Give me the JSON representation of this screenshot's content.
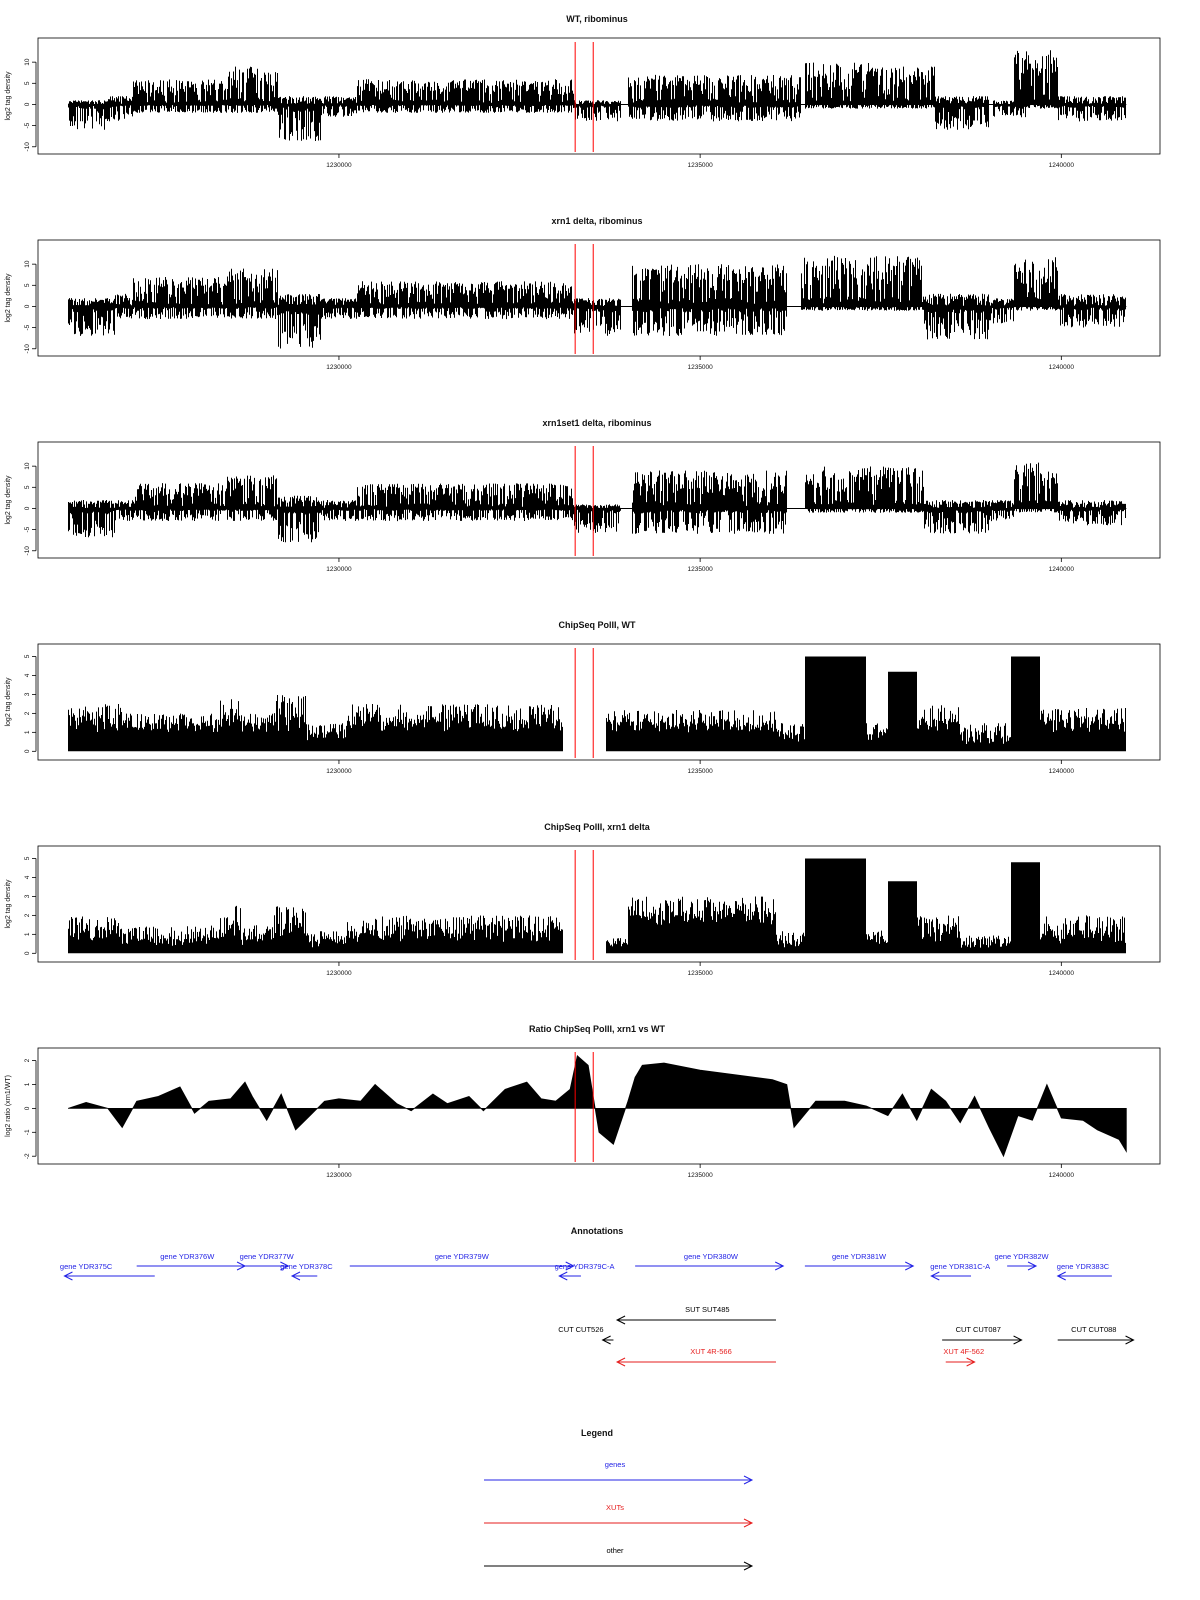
{
  "chart_data": [
    {
      "type": "bar",
      "title": "WT, ribominus",
      "ylabel": "log2 tag density",
      "ylim": [
        -11,
        15
      ],
      "yticks": [
        "-10",
        "-5",
        "0",
        "5",
        "10"
      ],
      "xlim": [
        1226000,
        1241200
      ],
      "xticks": [
        "1230000",
        "1235000",
        "1240000"
      ],
      "markers": [
        1233270,
        1233520
      ],
      "regions": [
        {
          "x0": 1226250,
          "x1": 1226800,
          "top": 1,
          "bot": -6
        },
        {
          "x0": 1226800,
          "x1": 1227150,
          "top": 2,
          "bot": -4
        },
        {
          "x0": 1227150,
          "x1": 1228450,
          "top": 6,
          "bot": -2
        },
        {
          "x0": 1228450,
          "x1": 1229150,
          "top": 9,
          "bot": -2
        },
        {
          "x0": 1229150,
          "x1": 1229750,
          "top": 2,
          "bot": -9
        },
        {
          "x0": 1229750,
          "x1": 1230250,
          "top": 2,
          "bot": -3
        },
        {
          "x0": 1230250,
          "x1": 1233250,
          "top": 6,
          "bot": -2
        },
        {
          "x0": 1233250,
          "x1": 1233900,
          "top": 1,
          "bot": -4
        },
        {
          "x0": 1234000,
          "x1": 1236400,
          "top": 7,
          "bot": -4
        },
        {
          "x0": 1236450,
          "x1": 1237500,
          "top": 10,
          "bot": -1
        },
        {
          "x0": 1237500,
          "x1": 1238250,
          "top": 9,
          "bot": -1
        },
        {
          "x0": 1238250,
          "x1": 1239000,
          "top": 2,
          "bot": -6
        },
        {
          "x0": 1239050,
          "x1": 1239550,
          "top": 1,
          "bot": -3
        },
        {
          "x0": 1239350,
          "x1": 1239950,
          "top": 13,
          "bot": -1
        },
        {
          "x0": 1239950,
          "x1": 1240900,
          "top": 2,
          "bot": -4
        }
      ]
    },
    {
      "type": "bar",
      "title": "xrn1 delta, ribominus",
      "ylabel": "log2 tag density",
      "ylim": [
        -11,
        15
      ],
      "yticks": [
        "-10",
        "-5",
        "0",
        "5",
        "10"
      ],
      "xlim": [
        1226000,
        1241200
      ],
      "xticks": [
        "1230000",
        "1235000",
        "1240000"
      ],
      "markers": [
        1233270,
        1233520
      ],
      "regions": [
        {
          "x0": 1226250,
          "x1": 1226900,
          "top": 2,
          "bot": -7
        },
        {
          "x0": 1226900,
          "x1": 1227150,
          "top": 3,
          "bot": -3
        },
        {
          "x0": 1227150,
          "x1": 1228450,
          "top": 7,
          "bot": -3
        },
        {
          "x0": 1228450,
          "x1": 1229150,
          "top": 9,
          "bot": -3
        },
        {
          "x0": 1229150,
          "x1": 1229750,
          "top": 3,
          "bot": -10
        },
        {
          "x0": 1229750,
          "x1": 1230250,
          "top": 2,
          "bot": -3
        },
        {
          "x0": 1230250,
          "x1": 1233250,
          "top": 6,
          "bot": -3
        },
        {
          "x0": 1233250,
          "x1": 1233900,
          "top": 2,
          "bot": -7
        },
        {
          "x0": 1234050,
          "x1": 1236200,
          "top": 10,
          "bot": -7
        },
        {
          "x0": 1236400,
          "x1": 1238100,
          "top": 12,
          "bot": -1
        },
        {
          "x0": 1238100,
          "x1": 1239000,
          "top": 3,
          "bot": -8
        },
        {
          "x0": 1239000,
          "x1": 1239350,
          "top": 2,
          "bot": -4
        },
        {
          "x0": 1239350,
          "x1": 1239950,
          "top": 12,
          "bot": -1
        },
        {
          "x0": 1239950,
          "x1": 1240900,
          "top": 3,
          "bot": -5
        }
      ]
    },
    {
      "type": "bar",
      "title": "xrn1set1 delta, ribominus",
      "ylabel": "log2 tag density",
      "ylim": [
        -11,
        15
      ],
      "yticks": [
        "-10",
        "-5",
        "0",
        "5",
        "10"
      ],
      "xlim": [
        1226000,
        1241200
      ],
      "xticks": [
        "1230000",
        "1235000",
        "1240000"
      ],
      "markers": [
        1233270,
        1233520
      ],
      "regions": [
        {
          "x0": 1226250,
          "x1": 1226900,
          "top": 2,
          "bot": -7
        },
        {
          "x0": 1226900,
          "x1": 1227150,
          "top": 2,
          "bot": -3
        },
        {
          "x0": 1227150,
          "x1": 1228450,
          "top": 6,
          "bot": -3
        },
        {
          "x0": 1228450,
          "x1": 1229150,
          "top": 8,
          "bot": -3
        },
        {
          "x0": 1229150,
          "x1": 1229750,
          "top": 3,
          "bot": -8
        },
        {
          "x0": 1229750,
          "x1": 1230250,
          "top": 2,
          "bot": -3
        },
        {
          "x0": 1230250,
          "x1": 1233250,
          "top": 6,
          "bot": -3
        },
        {
          "x0": 1233250,
          "x1": 1233900,
          "top": 1,
          "bot": -6
        },
        {
          "x0": 1234050,
          "x1": 1236200,
          "top": 9,
          "bot": -6
        },
        {
          "x0": 1236450,
          "x1": 1238100,
          "top": 10,
          "bot": -1
        },
        {
          "x0": 1238100,
          "x1": 1239000,
          "top": 2,
          "bot": -6
        },
        {
          "x0": 1239000,
          "x1": 1239350,
          "top": 2,
          "bot": -3
        },
        {
          "x0": 1239350,
          "x1": 1239950,
          "top": 11,
          "bot": -1
        },
        {
          "x0": 1239950,
          "x1": 1240900,
          "top": 2,
          "bot": -4
        }
      ]
    },
    {
      "type": "bar",
      "title": "ChipSeq PolII, WT",
      "ylabel": "log2 tag density",
      "ylim": [
        -0.3,
        5.5
      ],
      "yticks": [
        "0",
        "1",
        "2",
        "3",
        "4",
        "5"
      ],
      "xlim": [
        1226000,
        1241200
      ],
      "xticks": [
        "1230000",
        "1235000",
        "1240000"
      ],
      "markers": [
        1233270,
        1233520
      ],
      "regions": [
        {
          "x0": 1226250,
          "x1": 1227000,
          "top": 2.5,
          "base": 1
        },
        {
          "x0": 1227000,
          "x1": 1228350,
          "top": 2,
          "base": 1
        },
        {
          "x0": 1228350,
          "x1": 1228650,
          "top": 2.8,
          "base": 1
        },
        {
          "x0": 1228650,
          "x1": 1229100,
          "top": 2,
          "base": 1
        },
        {
          "x0": 1229100,
          "x1": 1229550,
          "top": 3,
          "base": 1
        },
        {
          "x0": 1229550,
          "x1": 1230100,
          "top": 1.5,
          "base": 0.5
        },
        {
          "x0": 1230100,
          "x1": 1231000,
          "top": 2.5,
          "base": 1
        },
        {
          "x0": 1231000,
          "x1": 1233100,
          "top": 2.5,
          "base": 1
        },
        {
          "x0": 1233700,
          "x1": 1236050,
          "top": 2.2,
          "base": 1
        },
        {
          "x0": 1236050,
          "x1": 1236450,
          "top": 1.5,
          "base": 0.5
        },
        {
          "x0": 1236450,
          "x1": 1237300,
          "top": 5,
          "base": 5
        },
        {
          "x0": 1237300,
          "x1": 1237600,
          "top": 1.5,
          "base": 0.5
        },
        {
          "x0": 1237600,
          "x1": 1238000,
          "top": 4.2,
          "base": 4.2
        },
        {
          "x0": 1238000,
          "x1": 1238600,
          "top": 2.5,
          "base": 1
        },
        {
          "x0": 1238600,
          "x1": 1239300,
          "top": 1.5,
          "base": 0.3
        },
        {
          "x0": 1239300,
          "x1": 1239700,
          "top": 5,
          "base": 5
        },
        {
          "x0": 1239700,
          "x1": 1240900,
          "top": 2.3,
          "base": 1
        }
      ]
    },
    {
      "type": "bar",
      "title": "ChipSeq PolII, xrn1 delta",
      "ylabel": "log2 tag density",
      "ylim": [
        -0.3,
        5.5
      ],
      "yticks": [
        "0",
        "1",
        "2",
        "3",
        "4",
        "5"
      ],
      "xlim": [
        1226000,
        1241200
      ],
      "xticks": [
        "1230000",
        "1235000",
        "1240000"
      ],
      "markers": [
        1233270,
        1233520
      ],
      "regions": [
        {
          "x0": 1226250,
          "x1": 1227000,
          "top": 2,
          "base": 0.6
        },
        {
          "x0": 1227000,
          "x1": 1228350,
          "top": 1.5,
          "base": 0.4
        },
        {
          "x0": 1228350,
          "x1": 1228650,
          "top": 2.5,
          "base": 0.8
        },
        {
          "x0": 1228650,
          "x1": 1229100,
          "top": 1.5,
          "base": 0.4
        },
        {
          "x0": 1229100,
          "x1": 1229550,
          "top": 2.5,
          "base": 0.8
        },
        {
          "x0": 1229550,
          "x1": 1230100,
          "top": 1.2,
          "base": 0.3
        },
        {
          "x0": 1230100,
          "x1": 1233100,
          "top": 2,
          "base": 0.6
        },
        {
          "x0": 1233700,
          "x1": 1234000,
          "top": 0.8,
          "base": 0.3
        },
        {
          "x0": 1234000,
          "x1": 1236050,
          "top": 3,
          "base": 1.5
        },
        {
          "x0": 1236050,
          "x1": 1236450,
          "top": 1.2,
          "base": 0.3
        },
        {
          "x0": 1236450,
          "x1": 1237300,
          "top": 5,
          "base": 5
        },
        {
          "x0": 1237300,
          "x1": 1237600,
          "top": 1.2,
          "base": 0.3
        },
        {
          "x0": 1237600,
          "x1": 1238000,
          "top": 3.8,
          "base": 3.8
        },
        {
          "x0": 1238000,
          "x1": 1238600,
          "top": 2,
          "base": 0.6
        },
        {
          "x0": 1238600,
          "x1": 1239300,
          "top": 1,
          "base": 0.2
        },
        {
          "x0": 1239300,
          "x1": 1239700,
          "top": 4.8,
          "base": 4.8
        },
        {
          "x0": 1239700,
          "x1": 1240900,
          "top": 2,
          "base": 0.5
        }
      ]
    },
    {
      "type": "area",
      "title": "Ratio ChipSeq PolII, xrn1 vs WT",
      "ylabel": "log2 ratio (xrn1/WT)",
      "ylim": [
        -2.2,
        2.4
      ],
      "yticks": [
        "-2",
        "-1",
        "0",
        "1",
        "2"
      ],
      "xlim": [
        1226000,
        1241200
      ],
      "xticks": [
        "1230000",
        "1235000",
        "1240000"
      ],
      "markers": [
        1233270,
        1233520
      ],
      "x": [
        1226250,
        1226500,
        1226800,
        1227000,
        1227200,
        1227500,
        1227800,
        1228000,
        1228200,
        1228500,
        1228700,
        1228800,
        1229000,
        1229200,
        1229400,
        1229600,
        1229800,
        1230000,
        1230300,
        1230500,
        1230800,
        1231000,
        1231300,
        1231500,
        1231800,
        1232000,
        1232300,
        1232600,
        1232800,
        1233000,
        1233200,
        1233300,
        1233450,
        1233600,
        1233800,
        1234000,
        1234100,
        1234200,
        1234500,
        1235000,
        1235500,
        1236000,
        1236200,
        1236300,
        1236600,
        1237000,
        1237300,
        1237600,
        1237800,
        1238000,
        1238200,
        1238400,
        1238600,
        1238800,
        1239000,
        1239200,
        1239400,
        1239600,
        1239800,
        1240000,
        1240300,
        1240500,
        1240800,
        1240900
      ],
      "y": [
        0,
        0.25,
        0,
        -0.8,
        0.3,
        0.5,
        0.9,
        -0.2,
        0.3,
        0.4,
        1.1,
        0.5,
        -0.5,
        0.6,
        -0.9,
        -0.3,
        0.3,
        0.4,
        0.3,
        1.0,
        0.2,
        -0.1,
        0.6,
        0.2,
        0.5,
        -0.1,
        0.8,
        1.1,
        0.4,
        0.3,
        0.8,
        2.2,
        1.8,
        -1.0,
        -1.5,
        0.3,
        1.3,
        1.8,
        1.9,
        1.6,
        1.4,
        1.2,
        1.0,
        -0.8,
        0.3,
        0.3,
        0.1,
        -0.3,
        0.6,
        -0.5,
        0.8,
        0.3,
        -0.6,
        0.5,
        -0.8,
        -2.0,
        -0.3,
        -0.5,
        1.0,
        -0.4,
        -0.5,
        -0.9,
        -1.3,
        -1.8
      ]
    }
  ],
  "annotations": {
    "title": "Annotations",
    "items": [
      {
        "label": "gene YDR375C",
        "kind": "gene",
        "dir": "left",
        "x0": 1226200,
        "x1": 1227450,
        "row": 1,
        "labelAt": 1226500
      },
      {
        "label": "gene YDR376W",
        "kind": "gene",
        "dir": "right",
        "x0": 1227200,
        "x1": 1228700,
        "row": 0,
        "labelAt": 1227900
      },
      {
        "label": "gene YDR377W",
        "kind": "gene",
        "dir": "right",
        "x0": 1228700,
        "x1": 1229300,
        "row": 0,
        "labelAt": 1229000
      },
      {
        "label": "gene YDR378C",
        "kind": "gene",
        "dir": "left",
        "x0": 1229350,
        "x1": 1229700,
        "row": 1,
        "labelAt": 1229550
      },
      {
        "label": "gene YDR379W",
        "kind": "gene",
        "dir": "right",
        "x0": 1230150,
        "x1": 1233250,
        "row": 0,
        "labelAt": 1231700
      },
      {
        "label": "gene YDR379C-A",
        "kind": "gene",
        "dir": "left",
        "x0": 1233050,
        "x1": 1233350,
        "row": 1,
        "labelAt": 1233400
      },
      {
        "label": "gene YDR380W",
        "kind": "gene",
        "dir": "right",
        "x0": 1234100,
        "x1": 1236150,
        "row": 0,
        "labelAt": 1235150
      },
      {
        "label": "gene YDR381W",
        "kind": "gene",
        "dir": "right",
        "x0": 1236450,
        "x1": 1237950,
        "row": 0,
        "labelAt": 1237200
      },
      {
        "label": "gene YDR381C-A",
        "kind": "gene",
        "dir": "left",
        "x0": 1238200,
        "x1": 1238750,
        "row": 1,
        "labelAt": 1238600
      },
      {
        "label": "gene YDR382W",
        "kind": "gene",
        "dir": "right",
        "x0": 1239250,
        "x1": 1239650,
        "row": 0,
        "labelAt": 1239450
      },
      {
        "label": "gene YDR383C",
        "kind": "gene",
        "dir": "left",
        "x0": 1239950,
        "x1": 1240700,
        "row": 1,
        "labelAt": 1240300
      },
      {
        "label": "SUT SUT485",
        "kind": "other",
        "dir": "left",
        "x0": 1233850,
        "x1": 1236050,
        "row": 2,
        "labelAt": 1235100
      },
      {
        "label": "CUT CUT526",
        "kind": "other",
        "dir": "left",
        "x0": 1233650,
        "x1": 1233800,
        "row": 3,
        "labelAt": 1233350
      },
      {
        "label": "CUT CUT087",
        "kind": "other",
        "dir": "right",
        "x0": 1238350,
        "x1": 1239450,
        "row": 3,
        "labelAt": 1238850
      },
      {
        "label": "CUT CUT088",
        "kind": "other",
        "dir": "right",
        "x0": 1239950,
        "x1": 1241000,
        "row": 3,
        "labelAt": 1240450
      },
      {
        "label": "XUT 4R-566",
        "kind": "xut",
        "dir": "left",
        "x0": 1233850,
        "x1": 1236050,
        "row": 4,
        "labelAt": 1235150
      },
      {
        "label": "XUT 4F-562",
        "kind": "xut",
        "dir": "right",
        "x0": 1238400,
        "x1": 1238800,
        "row": 4,
        "labelAt": 1238650
      }
    ]
  },
  "legend": {
    "title": "Legend",
    "items": [
      {
        "label": "genes",
        "color": "#2323e6"
      },
      {
        "label": "XUTs",
        "color": "#e61e1e"
      },
      {
        "label": "other",
        "color": "#000000"
      }
    ]
  },
  "colors": {
    "gene": "#2323e6",
    "xut": "#e61e1e",
    "other": "#000000",
    "marker": "#ff0000"
  }
}
